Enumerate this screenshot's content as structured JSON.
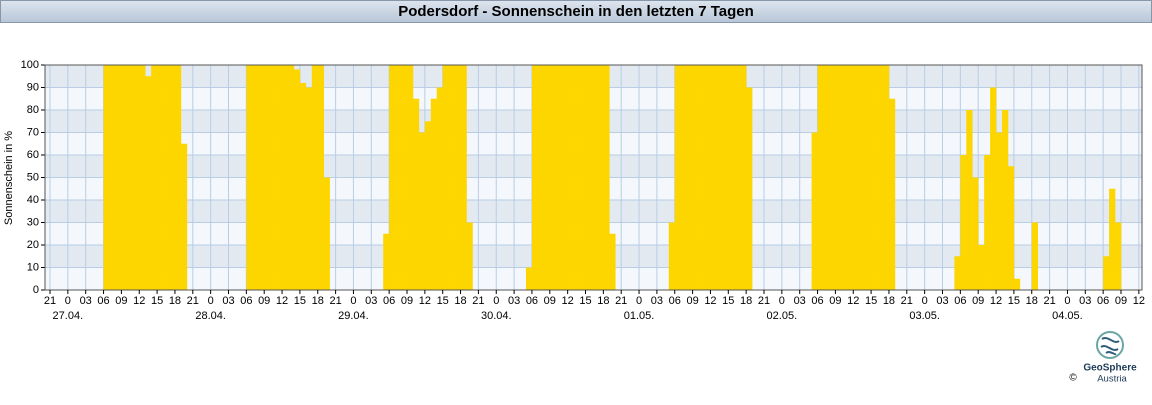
{
  "chart_data": {
    "type": "bar",
    "title": "Podersdorf - Sonnenschein in den letzten 7 Tagen",
    "y_label": "Sonnenschein in %",
    "color": "#fdd600",
    "grid": true,
    "categories": [
      "26.04. 21",
      "26.04. 22",
      "26.04. 23",
      "27.04. 00",
      "27.04. 01",
      "27.04. 02",
      "27.04. 03",
      "27.04. 04",
      "27.04. 05",
      "27.04. 06",
      "27.04. 07",
      "27.04. 08",
      "27.04. 09",
      "27.04. 10",
      "27.04. 11",
      "27.04. 12",
      "27.04. 13",
      "27.04. 14",
      "27.04. 15",
      "27.04. 16",
      "27.04. 17",
      "27.04. 18",
      "27.04. 19",
      "27.04. 20",
      "27.04. 21",
      "27.04. 22",
      "27.04. 23",
      "28.04. 00",
      "28.04. 01",
      "28.04. 02",
      "28.04. 03",
      "28.04. 04",
      "28.04. 05",
      "28.04. 06",
      "28.04. 07",
      "28.04. 08",
      "28.04. 09",
      "28.04. 10",
      "28.04. 11",
      "28.04. 12",
      "28.04. 13",
      "28.04. 14",
      "28.04. 15",
      "28.04. 16",
      "28.04. 17",
      "28.04. 18",
      "28.04. 19",
      "28.04. 20",
      "28.04. 21",
      "28.04. 22",
      "28.04. 23",
      "29.04. 00",
      "29.04. 01",
      "29.04. 02",
      "29.04. 03",
      "29.04. 04",
      "29.04. 05",
      "29.04. 06",
      "29.04. 07",
      "29.04. 08",
      "29.04. 09",
      "29.04. 10",
      "29.04. 11",
      "29.04. 12",
      "29.04. 13",
      "29.04. 14",
      "29.04. 15",
      "29.04. 16",
      "29.04. 17",
      "29.04. 18",
      "29.04. 19",
      "29.04. 20",
      "29.04. 21",
      "29.04. 22",
      "29.04. 23",
      "30.04. 00",
      "30.04. 01",
      "30.04. 02",
      "30.04. 03",
      "30.04. 04",
      "30.04. 05",
      "30.04. 06",
      "30.04. 07",
      "30.04. 08",
      "30.04. 09",
      "30.04. 10",
      "30.04. 11",
      "30.04. 12",
      "30.04. 13",
      "30.04. 14",
      "30.04. 15",
      "30.04. 16",
      "30.04. 17",
      "30.04. 18",
      "30.04. 19",
      "30.04. 20",
      "30.04. 21",
      "30.04. 22",
      "30.04. 23",
      "01.05. 00",
      "01.05. 01",
      "01.05. 02",
      "01.05. 03",
      "01.05. 04",
      "01.05. 05",
      "01.05. 06",
      "01.05. 07",
      "01.05. 08",
      "01.05. 09",
      "01.05. 10",
      "01.05. 11",
      "01.05. 12",
      "01.05. 13",
      "01.05. 14",
      "01.05. 15",
      "01.05. 16",
      "01.05. 17",
      "01.05. 18",
      "01.05. 19",
      "01.05. 20",
      "01.05. 21",
      "01.05. 22",
      "01.05. 23",
      "02.05. 00",
      "02.05. 01",
      "02.05. 02",
      "02.05. 03",
      "02.05. 04",
      "02.05. 05",
      "02.05. 06",
      "02.05. 07",
      "02.05. 08",
      "02.05. 09",
      "02.05. 10",
      "02.05. 11",
      "02.05. 12",
      "02.05. 13",
      "02.05. 14",
      "02.05. 15",
      "02.05. 16",
      "02.05. 17",
      "02.05. 18",
      "02.05. 19",
      "02.05. 20",
      "02.05. 21",
      "02.05. 22",
      "02.05. 23",
      "03.05. 00",
      "03.05. 01",
      "03.05. 02",
      "03.05. 03",
      "03.05. 04",
      "03.05. 05",
      "03.05. 06",
      "03.05. 07",
      "03.05. 08",
      "03.05. 09",
      "03.05. 10",
      "03.05. 11",
      "03.05. 12",
      "03.05. 13",
      "03.05. 14",
      "03.05. 15",
      "03.05. 16",
      "03.05. 17",
      "03.05. 18",
      "03.05. 19",
      "03.05. 20",
      "03.05. 21",
      "03.05. 22",
      "03.05. 23",
      "04.05. 00",
      "04.05. 01",
      "04.05. 02",
      "04.05. 03",
      "04.05. 04",
      "04.05. 05",
      "04.05. 06",
      "04.05. 07",
      "04.05. 08",
      "04.05. 09",
      "04.05. 10",
      "04.05. 11",
      "04.05. 12"
    ],
    "values": [
      0,
      0,
      0,
      0,
      0,
      0,
      0,
      0,
      0,
      100,
      100,
      100,
      100,
      100,
      100,
      100,
      95,
      100,
      100,
      100,
      100,
      100,
      65,
      0,
      0,
      0,
      0,
      0,
      0,
      0,
      0,
      0,
      0,
      100,
      100,
      100,
      100,
      100,
      100,
      100,
      100,
      98,
      92,
      90,
      100,
      100,
      50,
      0,
      0,
      0,
      0,
      0,
      0,
      0,
      0,
      0,
      25,
      100,
      100,
      100,
      100,
      85,
      70,
      75,
      85,
      90,
      100,
      100,
      100,
      100,
      30,
      0,
      0,
      0,
      0,
      0,
      0,
      0,
      0,
      0,
      10,
      100,
      100,
      100,
      100,
      100,
      100,
      100,
      100,
      100,
      100,
      100,
      100,
      100,
      25,
      0,
      0,
      0,
      0,
      0,
      0,
      0,
      0,
      0,
      30,
      100,
      100,
      100,
      100,
      100,
      100,
      100,
      100,
      100,
      100,
      100,
      100,
      90,
      0,
      0,
      0,
      0,
      0,
      0,
      0,
      0,
      0,
      0,
      70,
      100,
      100,
      100,
      100,
      100,
      100,
      100,
      100,
      100,
      100,
      100,
      100,
      85,
      0,
      0,
      0,
      0,
      0,
      0,
      0,
      0,
      0,
      0,
      15,
      60,
      80,
      50,
      20,
      60,
      90,
      70,
      80,
      55,
      5,
      0,
      0,
      30,
      0,
      0,
      0,
      0,
      0,
      0,
      0,
      0,
      0,
      0,
      0,
      15,
      45,
      30,
      0,
      0,
      0,
      0
    ],
    "ylim": [
      0,
      100
    ],
    "yticks": [
      0,
      10,
      20,
      30,
      40,
      50,
      60,
      70,
      80,
      90,
      100
    ],
    "xticks": [
      {
        "value": "26.04. 21",
        "label": "21"
      },
      {
        "value": "27.04. 00",
        "label": "0"
      },
      {
        "value": "27.04. 03",
        "label": "03"
      },
      {
        "value": "27.04. 06",
        "label": "06"
      },
      {
        "value": "27.04. 09",
        "label": "09"
      },
      {
        "value": "27.04. 12",
        "label": "12"
      },
      {
        "value": "27.04. 15",
        "label": "15"
      },
      {
        "value": "27.04. 18",
        "label": "18"
      },
      {
        "value": "27.04. 21",
        "label": "21"
      },
      {
        "value": "28.04. 00",
        "label": "0"
      },
      {
        "value": "28.04. 03",
        "label": "03"
      },
      {
        "value": "28.04. 06",
        "label": "06"
      },
      {
        "value": "28.04. 09",
        "label": "09"
      },
      {
        "value": "28.04. 12",
        "label": "12"
      },
      {
        "value": "28.04. 15",
        "label": "15"
      },
      {
        "value": "28.04. 18",
        "label": "18"
      },
      {
        "value": "28.04. 21",
        "label": "21"
      },
      {
        "value": "29.04. 00",
        "label": "0"
      },
      {
        "value": "29.04. 03",
        "label": "03"
      },
      {
        "value": "29.04. 06",
        "label": "06"
      },
      {
        "value": "29.04. 09",
        "label": "09"
      },
      {
        "value": "29.04. 12",
        "label": "12"
      },
      {
        "value": "29.04. 15",
        "label": "15"
      },
      {
        "value": "29.04. 18",
        "label": "18"
      },
      {
        "value": "29.04. 21",
        "label": "21"
      },
      {
        "value": "30.04. 00",
        "label": "0"
      },
      {
        "value": "30.04. 03",
        "label": "03"
      },
      {
        "value": "30.04. 06",
        "label": "06"
      },
      {
        "value": "30.04. 09",
        "label": "09"
      },
      {
        "value": "30.04. 12",
        "label": "12"
      },
      {
        "value": "30.04. 15",
        "label": "15"
      },
      {
        "value": "30.04. 18",
        "label": "18"
      },
      {
        "value": "30.04. 21",
        "label": "21"
      },
      {
        "value": "01.05. 00",
        "label": "0"
      },
      {
        "value": "01.05. 03",
        "label": "03"
      },
      {
        "value": "01.05. 06",
        "label": "06"
      },
      {
        "value": "01.05. 09",
        "label": "09"
      },
      {
        "value": "01.05. 12",
        "label": "12"
      },
      {
        "value": "01.05. 15",
        "label": "15"
      },
      {
        "value": "01.05. 18",
        "label": "18"
      },
      {
        "value": "01.05. 21",
        "label": "21"
      },
      {
        "value": "02.05. 00",
        "label": "0"
      },
      {
        "value": "02.05. 03",
        "label": "03"
      },
      {
        "value": "02.05. 06",
        "label": "06"
      },
      {
        "value": "02.05. 09",
        "label": "09"
      },
      {
        "value": "02.05. 12",
        "label": "12"
      },
      {
        "value": "02.05. 15",
        "label": "15"
      },
      {
        "value": "02.05. 18",
        "label": "18"
      },
      {
        "value": "02.05. 21",
        "label": "21"
      },
      {
        "value": "03.05. 00",
        "label": "0"
      },
      {
        "value": "03.05. 03",
        "label": "03"
      },
      {
        "value": "03.05. 06",
        "label": "06"
      },
      {
        "value": "03.05. 09",
        "label": "09"
      },
      {
        "value": "03.05. 12",
        "label": "12"
      },
      {
        "value": "03.05. 15",
        "label": "15"
      },
      {
        "value": "03.05. 18",
        "label": "18"
      },
      {
        "value": "03.05. 21",
        "label": "21"
      },
      {
        "value": "04.05. 00",
        "label": "0"
      },
      {
        "value": "04.05. 03",
        "label": "03"
      },
      {
        "value": "04.05. 06",
        "label": "06"
      },
      {
        "value": "04.05. 09",
        "label": "09"
      },
      {
        "value": "04.05. 12",
        "label": "12"
      }
    ],
    "xdates": [
      {
        "value": "27.04. 00",
        "label": "27.04."
      },
      {
        "value": "28.04. 00",
        "label": "28.04."
      },
      {
        "value": "29.04. 00",
        "label": "29.04."
      },
      {
        "value": "30.04. 00",
        "label": "30.04."
      },
      {
        "value": "01.05. 00",
        "label": "01.05."
      },
      {
        "value": "02.05. 00",
        "label": "02.05."
      },
      {
        "value": "03.05. 00",
        "label": "03.05."
      },
      {
        "value": "04.05. 00",
        "label": "04.05."
      }
    ],
    "logo": {
      "name": "GeoSphere",
      "sub": "Austria",
      "copyright": "©"
    }
  }
}
